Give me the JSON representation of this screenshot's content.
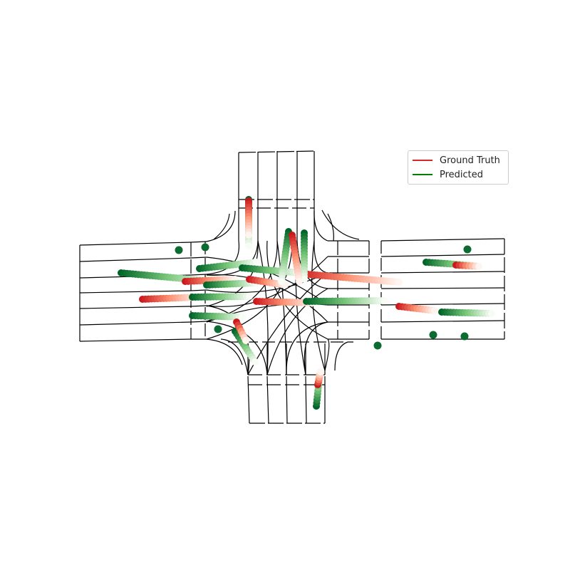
{
  "legend": {
    "entries": [
      {
        "label": "Ground Truth",
        "color": "#d62728"
      },
      {
        "label": "Predicted",
        "color": "#008000"
      }
    ],
    "placement": "top-right"
  },
  "colors": {
    "map_lines": "#000000",
    "gt_colormap": "Reds",
    "pred_colormap": "Greens"
  }
}
